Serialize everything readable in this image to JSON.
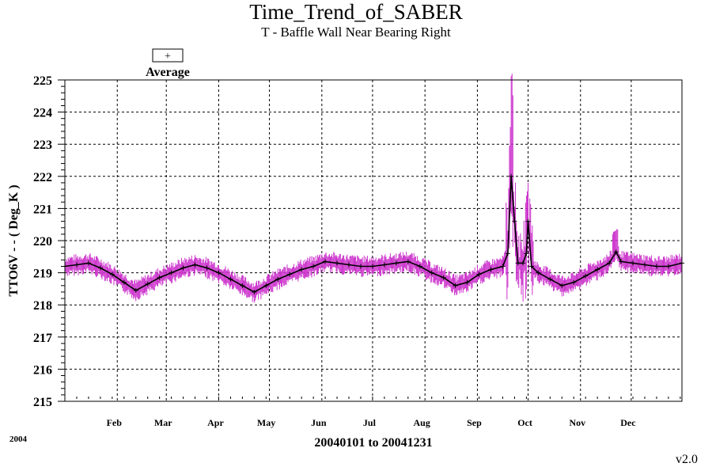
{
  "chart_data": {
    "type": "line",
    "title": "Time_Trend_of_SABER",
    "subtitle": "T - Baffle Wall Near Bearing Right",
    "xlabel": "20040101 to 20041231",
    "ylabel": "TTO6V  - - ( Deg_K )",
    "year_label": "2004",
    "version": "v2.0",
    "ylim": [
      215,
      225
    ],
    "yticks": [
      215,
      216,
      217,
      218,
      219,
      220,
      221,
      222,
      223,
      224,
      225
    ],
    "xlim": [
      1,
      366
    ],
    "month_ticks": [
      {
        "label": "Feb",
        "day": 32
      },
      {
        "label": "Mar",
        "day": 61
      },
      {
        "label": "Apr",
        "day": 92
      },
      {
        "label": "May",
        "day": 122
      },
      {
        "label": "Jun",
        "day": 153
      },
      {
        "label": "Jul",
        "day": 183
      },
      {
        "label": "Aug",
        "day": 214
      },
      {
        "label": "Sep",
        "day": 245
      },
      {
        "label": "Oct",
        "day": 275
      },
      {
        "label": "Nov",
        "day": 306
      },
      {
        "label": "Dec",
        "day": 336
      }
    ],
    "grid": true,
    "legend": {
      "entries": [
        {
          "symbol": "+",
          "label": "Average"
        }
      ],
      "placement": "top-left"
    },
    "series": [
      {
        "name": "Average",
        "color": "#000000",
        "range_color": "#cc33cc",
        "marker": "+",
        "points": [
          {
            "day": 1,
            "y": 219.2
          },
          {
            "day": 8,
            "y": 219.25
          },
          {
            "day": 15,
            "y": 219.3
          },
          {
            "day": 22,
            "y": 219.15
          },
          {
            "day": 29,
            "y": 218.95
          },
          {
            "day": 36,
            "y": 218.7
          },
          {
            "day": 43,
            "y": 218.45
          },
          {
            "day": 50,
            "y": 218.65
          },
          {
            "day": 57,
            "y": 218.85
          },
          {
            "day": 64,
            "y": 219.0
          },
          {
            "day": 71,
            "y": 219.15
          },
          {
            "day": 78,
            "y": 219.25
          },
          {
            "day": 85,
            "y": 219.15
          },
          {
            "day": 92,
            "y": 219.0
          },
          {
            "day": 99,
            "y": 218.8
          },
          {
            "day": 106,
            "y": 218.6
          },
          {
            "day": 113,
            "y": 218.4
          },
          {
            "day": 120,
            "y": 218.6
          },
          {
            "day": 127,
            "y": 218.8
          },
          {
            "day": 134,
            "y": 218.95
          },
          {
            "day": 141,
            "y": 219.1
          },
          {
            "day": 148,
            "y": 219.2
          },
          {
            "day": 155,
            "y": 219.35
          },
          {
            "day": 162,
            "y": 219.3
          },
          {
            "day": 169,
            "y": 219.25
          },
          {
            "day": 176,
            "y": 219.2
          },
          {
            "day": 183,
            "y": 219.2
          },
          {
            "day": 190,
            "y": 219.25
          },
          {
            "day": 197,
            "y": 219.3
          },
          {
            "day": 204,
            "y": 219.35
          },
          {
            "day": 211,
            "y": 219.2
          },
          {
            "day": 218,
            "y": 219.0
          },
          {
            "day": 225,
            "y": 218.85
          },
          {
            "day": 232,
            "y": 218.6
          },
          {
            "day": 239,
            "y": 218.7
          },
          {
            "day": 246,
            "y": 218.95
          },
          {
            "day": 253,
            "y": 219.1
          },
          {
            "day": 260,
            "y": 219.2
          },
          {
            "day": 263,
            "y": 219.6
          },
          {
            "day": 265,
            "y": 222.0
          },
          {
            "day": 267,
            "y": 220.6
          },
          {
            "day": 269,
            "y": 219.3
          },
          {
            "day": 272,
            "y": 219.3
          },
          {
            "day": 274,
            "y": 219.6
          },
          {
            "day": 275,
            "y": 220.6
          },
          {
            "day": 277,
            "y": 219.2
          },
          {
            "day": 281,
            "y": 219.0
          },
          {
            "day": 288,
            "y": 218.8
          },
          {
            "day": 295,
            "y": 218.6
          },
          {
            "day": 302,
            "y": 218.7
          },
          {
            "day": 309,
            "y": 218.9
          },
          {
            "day": 316,
            "y": 219.1
          },
          {
            "day": 323,
            "y": 219.3
          },
          {
            "day": 327,
            "y": 219.65
          },
          {
            "day": 330,
            "y": 219.35
          },
          {
            "day": 337,
            "y": 219.3
          },
          {
            "day": 344,
            "y": 219.25
          },
          {
            "day": 351,
            "y": 219.2
          },
          {
            "day": 358,
            "y": 219.2
          },
          {
            "day": 366,
            "y": 219.3
          }
        ]
      }
    ]
  }
}
